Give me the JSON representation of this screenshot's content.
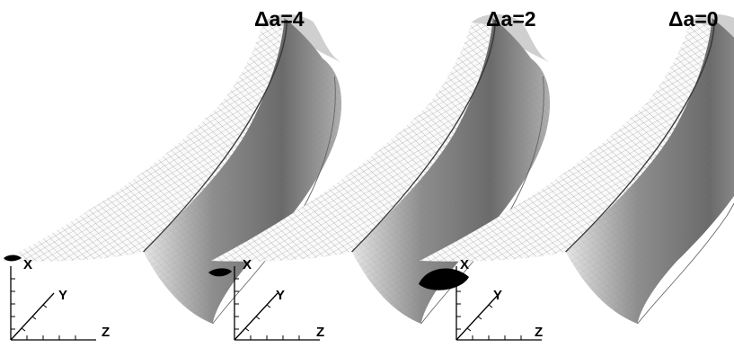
{
  "panels": [
    {
      "title": "Δa=4",
      "axes": {
        "x": "X",
        "y": "Y",
        "z": "Z"
      }
    },
    {
      "title": "Δa=2",
      "axes": {
        "x": "X",
        "y": "Y",
        "z": "Z"
      }
    },
    {
      "title": "Δa=0",
      "axes": {
        "x": "X",
        "y": "Y",
        "z": "Z"
      }
    }
  ],
  "colors": {
    "background": "#ffffff",
    "mesh_line": "#6e6e6e",
    "shade_dark": "#5a5a5a",
    "ink": "#000000"
  }
}
